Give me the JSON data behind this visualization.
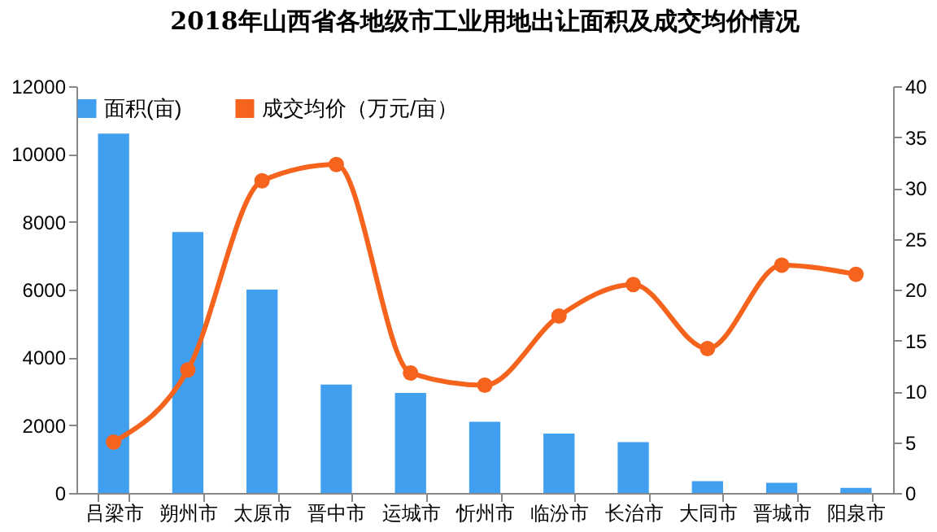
{
  "chart_data": {
    "type": "bar",
    "title": "2018年山西省各地级市工业用地出让面积及成交均价情况",
    "categories": [
      "吕梁市",
      "朔州市",
      "太原市",
      "晋中市",
      "运城市",
      "忻州市",
      "临汾市",
      "长治市",
      "大同市",
      "晋城市",
      "阳泉市"
    ],
    "series": [
      {
        "name": "面积(亩)",
        "color": "#419ff0",
        "values": [
          10600,
          7700,
          6000,
          3200,
          2950,
          2100,
          1750,
          1500,
          350,
          300,
          150
        ]
      },
      {
        "name": "成交均价（万元/亩）",
        "type": "line",
        "axis": "y2",
        "color": "#f5631d",
        "values": [
          5.0,
          12.1,
          30.7,
          32.3,
          11.8,
          10.6,
          17.4,
          20.5,
          14.2,
          22.4,
          21.5
        ]
      }
    ],
    "ylim": [
      0,
      12000
    ],
    "yticks": [
      0,
      2000,
      4000,
      6000,
      8000,
      10000,
      12000
    ],
    "y2lim": [
      0,
      40
    ],
    "y2ticks": [
      0,
      5,
      10,
      15,
      20,
      25,
      30,
      35,
      40
    ],
    "legend": "top",
    "marker": "circle",
    "grid": false
  }
}
